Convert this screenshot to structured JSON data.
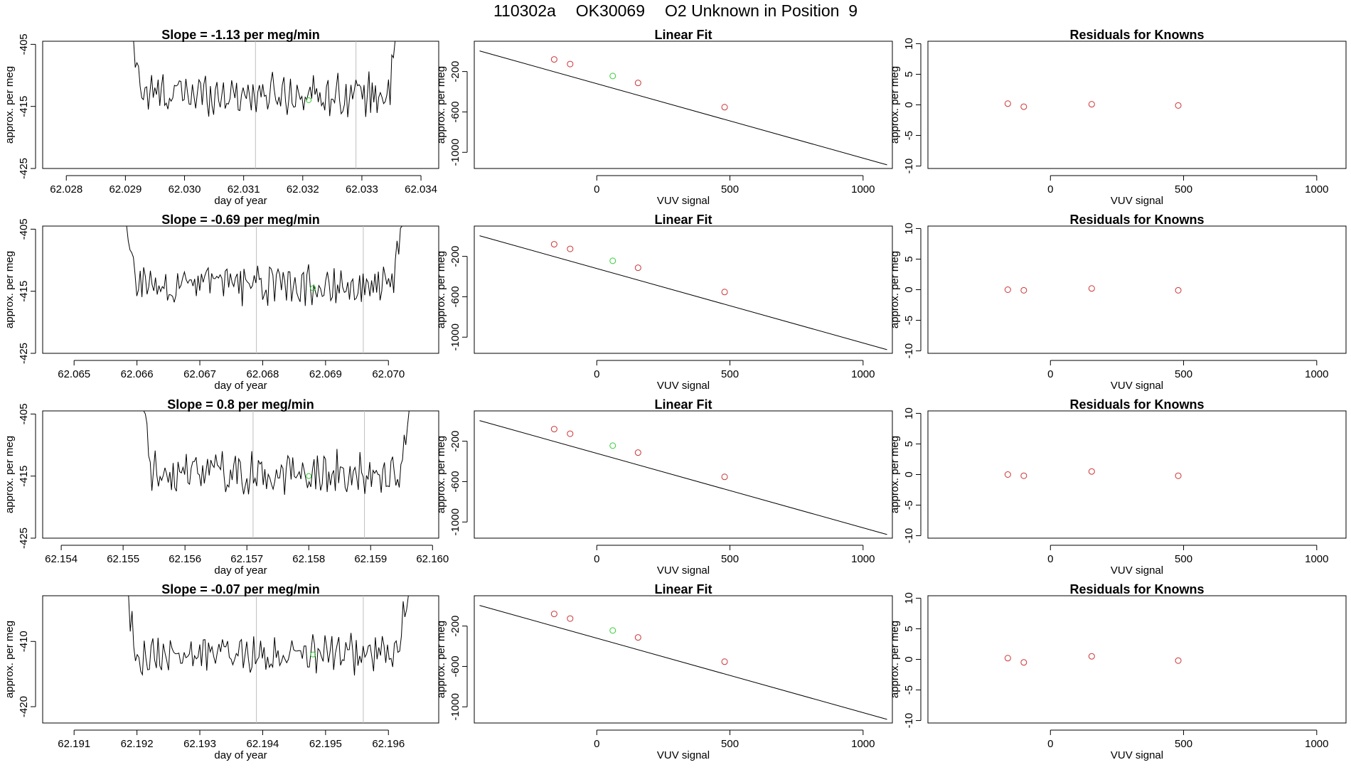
{
  "page_title": {
    "run": "110302a",
    "tank": "OK30069",
    "desc": "O2 Unknown in Position  9"
  },
  "colors": {
    "trace": "#000000",
    "known": "#cc3333",
    "unknown": "#33cc33",
    "vline": "#bfbfbf",
    "axis": "#000000"
  },
  "chart_data": [
    {
      "row": 1,
      "time_series": {
        "type": "line",
        "title": "Slope =  -1.13  per meg/min",
        "xlabel": "day of year",
        "ylabel": "approx. per meg",
        "xlim": [
          62.0276,
          62.0343
        ],
        "ylim": [
          -425,
          -404.5
        ],
        "xticks": [
          62.028,
          62.029,
          62.03,
          62.031,
          62.032,
          62.033,
          62.034
        ],
        "xtick_labels": [
          "62.028",
          "62.029",
          "62.030",
          "62.031",
          "62.032",
          "62.033",
          "62.034"
        ],
        "yticks": [
          -405,
          -415,
          -425
        ],
        "ytick_labels": [
          "-405",
          "-415",
          "-425"
        ],
        "vlines": [
          62.0312,
          62.0329
        ],
        "x_start": 62.029,
        "x_end": 62.0337,
        "baseline": -413,
        "noise": 2.8,
        "unknown_point": [
          62.0321,
          -414.0
        ]
      },
      "linear_fit": {
        "type": "scatter",
        "title": "Linear Fit",
        "xlabel": "VUV signal",
        "ylabel": "approx. per meg",
        "xlim": [
          -460,
          1110
        ],
        "ylim": [
          -1160,
          100
        ],
        "xticks": [
          0,
          500,
          1000
        ],
        "xtick_labels": [
          "0",
          "500",
          "1000"
        ],
        "yticks": [
          -200,
          -600,
          -1000
        ],
        "ytick_labels": [
          "-200",
          "-600",
          "-1000"
        ],
        "line": {
          "x": [
            -440,
            1090
          ],
          "y": [
            4,
            -1124
          ]
        },
        "knowns": [
          [
            -160,
            -80
          ],
          [
            -100,
            -126
          ],
          [
            155,
            -313
          ],
          [
            480,
            -553
          ]
        ],
        "unknown": [
          60,
          -244
        ]
      },
      "residuals": {
        "type": "scatter",
        "title": "Residuals for Knowns",
        "xlabel": "VUV signal",
        "ylabel": "approx. per meg",
        "xlim": [
          -460,
          1110
        ],
        "ylim": [
          -10.4,
          10.4
        ],
        "xticks": [
          0,
          500,
          1000
        ],
        "xtick_labels": [
          "0",
          "500",
          "1000"
        ],
        "yticks": [
          10,
          5,
          0,
          -5,
          -10
        ],
        "ytick_labels": [
          "10",
          "5",
          "0",
          "-5",
          "-10"
        ],
        "points": [
          [
            -160,
            0.2
          ],
          [
            -100,
            -0.3
          ],
          [
            155,
            0.1
          ],
          [
            480,
            -0.1
          ]
        ]
      }
    },
    {
      "row": 2,
      "time_series": {
        "type": "line",
        "title": "Slope =  -0.69  per meg/min",
        "xlabel": "day of year",
        "ylabel": "approx. per meg",
        "xlim": [
          62.0645,
          62.0708
        ],
        "ylim": [
          -425,
          -404.5
        ],
        "xticks": [
          62.065,
          62.066,
          62.067,
          62.068,
          62.069,
          62.07
        ],
        "xtick_labels": [
          "62.065",
          "62.066",
          "62.067",
          "62.068",
          "62.069",
          "62.070"
        ],
        "yticks": [
          -405,
          -415,
          -425
        ],
        "ytick_labels": [
          "-405",
          "-415",
          "-425"
        ],
        "vlines": [
          62.0679,
          62.0696
        ],
        "x_start": 62.0657,
        "x_end": 62.0703,
        "baseline": -414,
        "noise": 2.6,
        "unknown_point": [
          62.0688,
          -414.5
        ]
      },
      "linear_fit": {
        "type": "scatter",
        "title": "Linear Fit",
        "xlabel": "VUV signal",
        "ylabel": "approx. per meg",
        "xlim": [
          -460,
          1110
        ],
        "ylim": [
          -1160,
          100
        ],
        "xticks": [
          0,
          500,
          1000
        ],
        "xtick_labels": [
          "0",
          "500",
          "1000"
        ],
        "yticks": [
          -200,
          -600,
          -1000
        ],
        "ytick_labels": [
          "-200",
          "-600",
          "-1000"
        ],
        "line": {
          "x": [
            -440,
            1090
          ],
          "y": [
            4,
            -1124
          ]
        },
        "knowns": [
          [
            -160,
            -80
          ],
          [
            -100,
            -126
          ],
          [
            155,
            -313
          ],
          [
            480,
            -553
          ]
        ],
        "unknown": [
          60,
          -244
        ]
      },
      "residuals": {
        "type": "scatter",
        "title": "Residuals for Knowns",
        "xlabel": "VUV signal",
        "ylabel": "approx. per meg",
        "xlim": [
          -460,
          1110
        ],
        "ylim": [
          -10.4,
          10.4
        ],
        "xticks": [
          0,
          500,
          1000
        ],
        "xtick_labels": [
          "0",
          "500",
          "1000"
        ],
        "yticks": [
          10,
          5,
          0,
          -5,
          -10
        ],
        "ytick_labels": [
          "10",
          "5",
          "0",
          "-5",
          "-10"
        ],
        "points": [
          [
            -160,
            0.0
          ],
          [
            -100,
            -0.1
          ],
          [
            155,
            0.2
          ],
          [
            480,
            -0.1
          ]
        ]
      }
    },
    {
      "row": 3,
      "time_series": {
        "type": "line",
        "title": "Slope =  0.8  per meg/min",
        "xlabel": "day of year",
        "ylabel": "approx. per meg",
        "xlim": [
          62.1537,
          62.1601
        ],
        "ylim": [
          -425,
          -404.5
        ],
        "xticks": [
          62.154,
          62.155,
          62.156,
          62.157,
          62.158,
          62.159,
          62.16
        ],
        "xtick_labels": [
          "62.154",
          "62.155",
          "62.156",
          "62.157",
          "62.158",
          "62.159",
          "62.160"
        ],
        "yticks": [
          -405,
          -415,
          -425
        ],
        "ytick_labels": [
          "-405",
          "-415",
          "-425"
        ],
        "vlines": [
          62.1571,
          62.1589
        ],
        "x_start": 62.1552,
        "x_end": 62.1597,
        "baseline": -414.5,
        "noise": 3.0,
        "unknown_point": [
          62.158,
          -415.0
        ]
      },
      "linear_fit": {
        "type": "scatter",
        "title": "Linear Fit",
        "xlabel": "VUV signal",
        "ylabel": "approx. per meg",
        "xlim": [
          -460,
          1110
        ],
        "ylim": [
          -1160,
          100
        ],
        "xticks": [
          0,
          500,
          1000
        ],
        "xtick_labels": [
          "0",
          "500",
          "1000"
        ],
        "yticks": [
          -200,
          -600,
          -1000
        ],
        "ytick_labels": [
          "-200",
          "-600",
          "-1000"
        ],
        "line": {
          "x": [
            -440,
            1090
          ],
          "y": [
            4,
            -1124
          ]
        },
        "knowns": [
          [
            -160,
            -80
          ],
          [
            -100,
            -126
          ],
          [
            155,
            -313
          ],
          [
            480,
            -553
          ]
        ],
        "unknown": [
          60,
          -244
        ]
      },
      "residuals": {
        "type": "scatter",
        "title": "Residuals for Knowns",
        "xlabel": "VUV signal",
        "ylabel": "approx. per meg",
        "xlim": [
          -460,
          1110
        ],
        "ylim": [
          -10.4,
          10.4
        ],
        "xticks": [
          0,
          500,
          1000
        ],
        "xtick_labels": [
          "0",
          "500",
          "1000"
        ],
        "yticks": [
          10,
          5,
          0,
          -5,
          -10
        ],
        "ytick_labels": [
          "10",
          "5",
          "0",
          "-5",
          "-10"
        ],
        "points": [
          [
            -160,
            0.0
          ],
          [
            -100,
            -0.2
          ],
          [
            155,
            0.5
          ],
          [
            480,
            -0.2
          ]
        ]
      }
    },
    {
      "row": 4,
      "time_series": {
        "type": "line",
        "title": "Slope =  -0.07  per meg/min",
        "xlabel": "day of year",
        "ylabel": "approx. per meg",
        "xlim": [
          62.1905,
          62.1968
        ],
        "ylim": [
          -422.5,
          -403
        ],
        "xticks": [
          62.191,
          62.192,
          62.193,
          62.194,
          62.195,
          62.196
        ],
        "xtick_labels": [
          "62.191",
          "62.192",
          "62.193",
          "62.194",
          "62.195",
          "62.196"
        ],
        "yticks": [
          -410,
          -420
        ],
        "ytick_labels": [
          "-410",
          "-420"
        ],
        "vlines": [
          62.1939,
          62.1956
        ],
        "x_start": 62.1917,
        "x_end": 62.1964,
        "baseline": -412,
        "noise": 2.5,
        "unknown_point": [
          62.1948,
          -412.0
        ]
      },
      "linear_fit": {
        "type": "scatter",
        "title": "Linear Fit",
        "xlabel": "VUV signal",
        "ylabel": "approx. per meg",
        "xlim": [
          -460,
          1110
        ],
        "ylim": [
          -1160,
          100
        ],
        "xticks": [
          0,
          500,
          1000
        ],
        "xtick_labels": [
          "0",
          "500",
          "1000"
        ],
        "yticks": [
          -200,
          -600,
          -1000
        ],
        "ytick_labels": [
          "-200",
          "-600",
          "-1000"
        ],
        "line": {
          "x": [
            -440,
            1090
          ],
          "y": [
            4,
            -1124
          ]
        },
        "knowns": [
          [
            -160,
            -80
          ],
          [
            -100,
            -126
          ],
          [
            155,
            -313
          ],
          [
            480,
            -553
          ]
        ],
        "unknown": [
          60,
          -244
        ]
      },
      "residuals": {
        "type": "scatter",
        "title": "Residuals for Knowns",
        "xlabel": "VUV signal",
        "ylabel": "approx. per meg",
        "xlim": [
          -460,
          1110
        ],
        "ylim": [
          -10.4,
          10.4
        ],
        "xticks": [
          0,
          500,
          1000
        ],
        "xtick_labels": [
          "0",
          "500",
          "1000"
        ],
        "yticks": [
          10,
          5,
          0,
          -5,
          -10
        ],
        "ytick_labels": [
          "10",
          "5",
          "0",
          "-5",
          "-10"
        ],
        "points": [
          [
            -160,
            0.2
          ],
          [
            -100,
            -0.5
          ],
          [
            155,
            0.5
          ],
          [
            480,
            -0.2
          ]
        ]
      }
    }
  ]
}
